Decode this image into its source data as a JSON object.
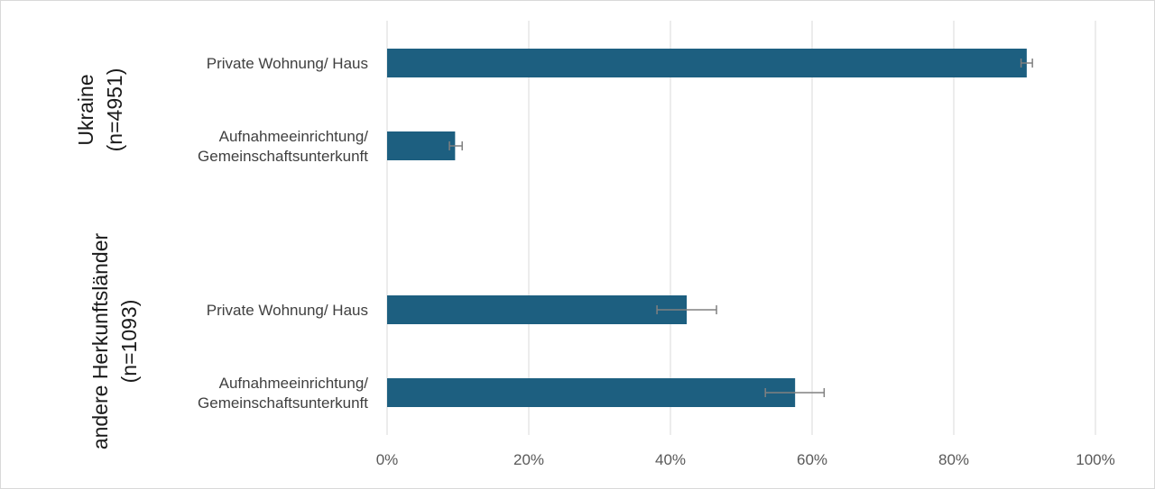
{
  "chart_data": {
    "type": "bar",
    "orientation": "horizontal",
    "xlim": [
      0,
      100
    ],
    "x_unit": "%",
    "x_ticks": [
      "0%",
      "20%",
      "40%",
      "60%",
      "80%",
      "100%"
    ],
    "grid": "vertical",
    "bar_color": "#1d5f80",
    "error_bar_color": "#808080",
    "groups": [
      {
        "label_lines": [
          "Ukraine",
          "(n=4951)"
        ],
        "bars": [
          {
            "label_lines": [
              "Private Wohnung/ Haus"
            ],
            "value": 90.3,
            "error_low": 89.5,
            "error_high": 91.1
          },
          {
            "label_lines": [
              "Aufnahmeeinrichtung/",
              "Gemeinschaftsunterkunft"
            ],
            "value": 9.6,
            "error_low": 8.8,
            "error_high": 10.6
          }
        ]
      },
      {
        "label_lines": [
          "andere Herkunftsländer",
          "(n=1093)"
        ],
        "bars": [
          {
            "label_lines": [
              "Private Wohnung/ Haus"
            ],
            "value": 42.3,
            "error_low": 38.1,
            "error_high": 46.5
          },
          {
            "label_lines": [
              "Aufnahmeeinrichtung/",
              "Gemeinschaftsunterkunft"
            ],
            "value": 57.6,
            "error_low": 53.4,
            "error_high": 61.7
          }
        ]
      }
    ]
  }
}
